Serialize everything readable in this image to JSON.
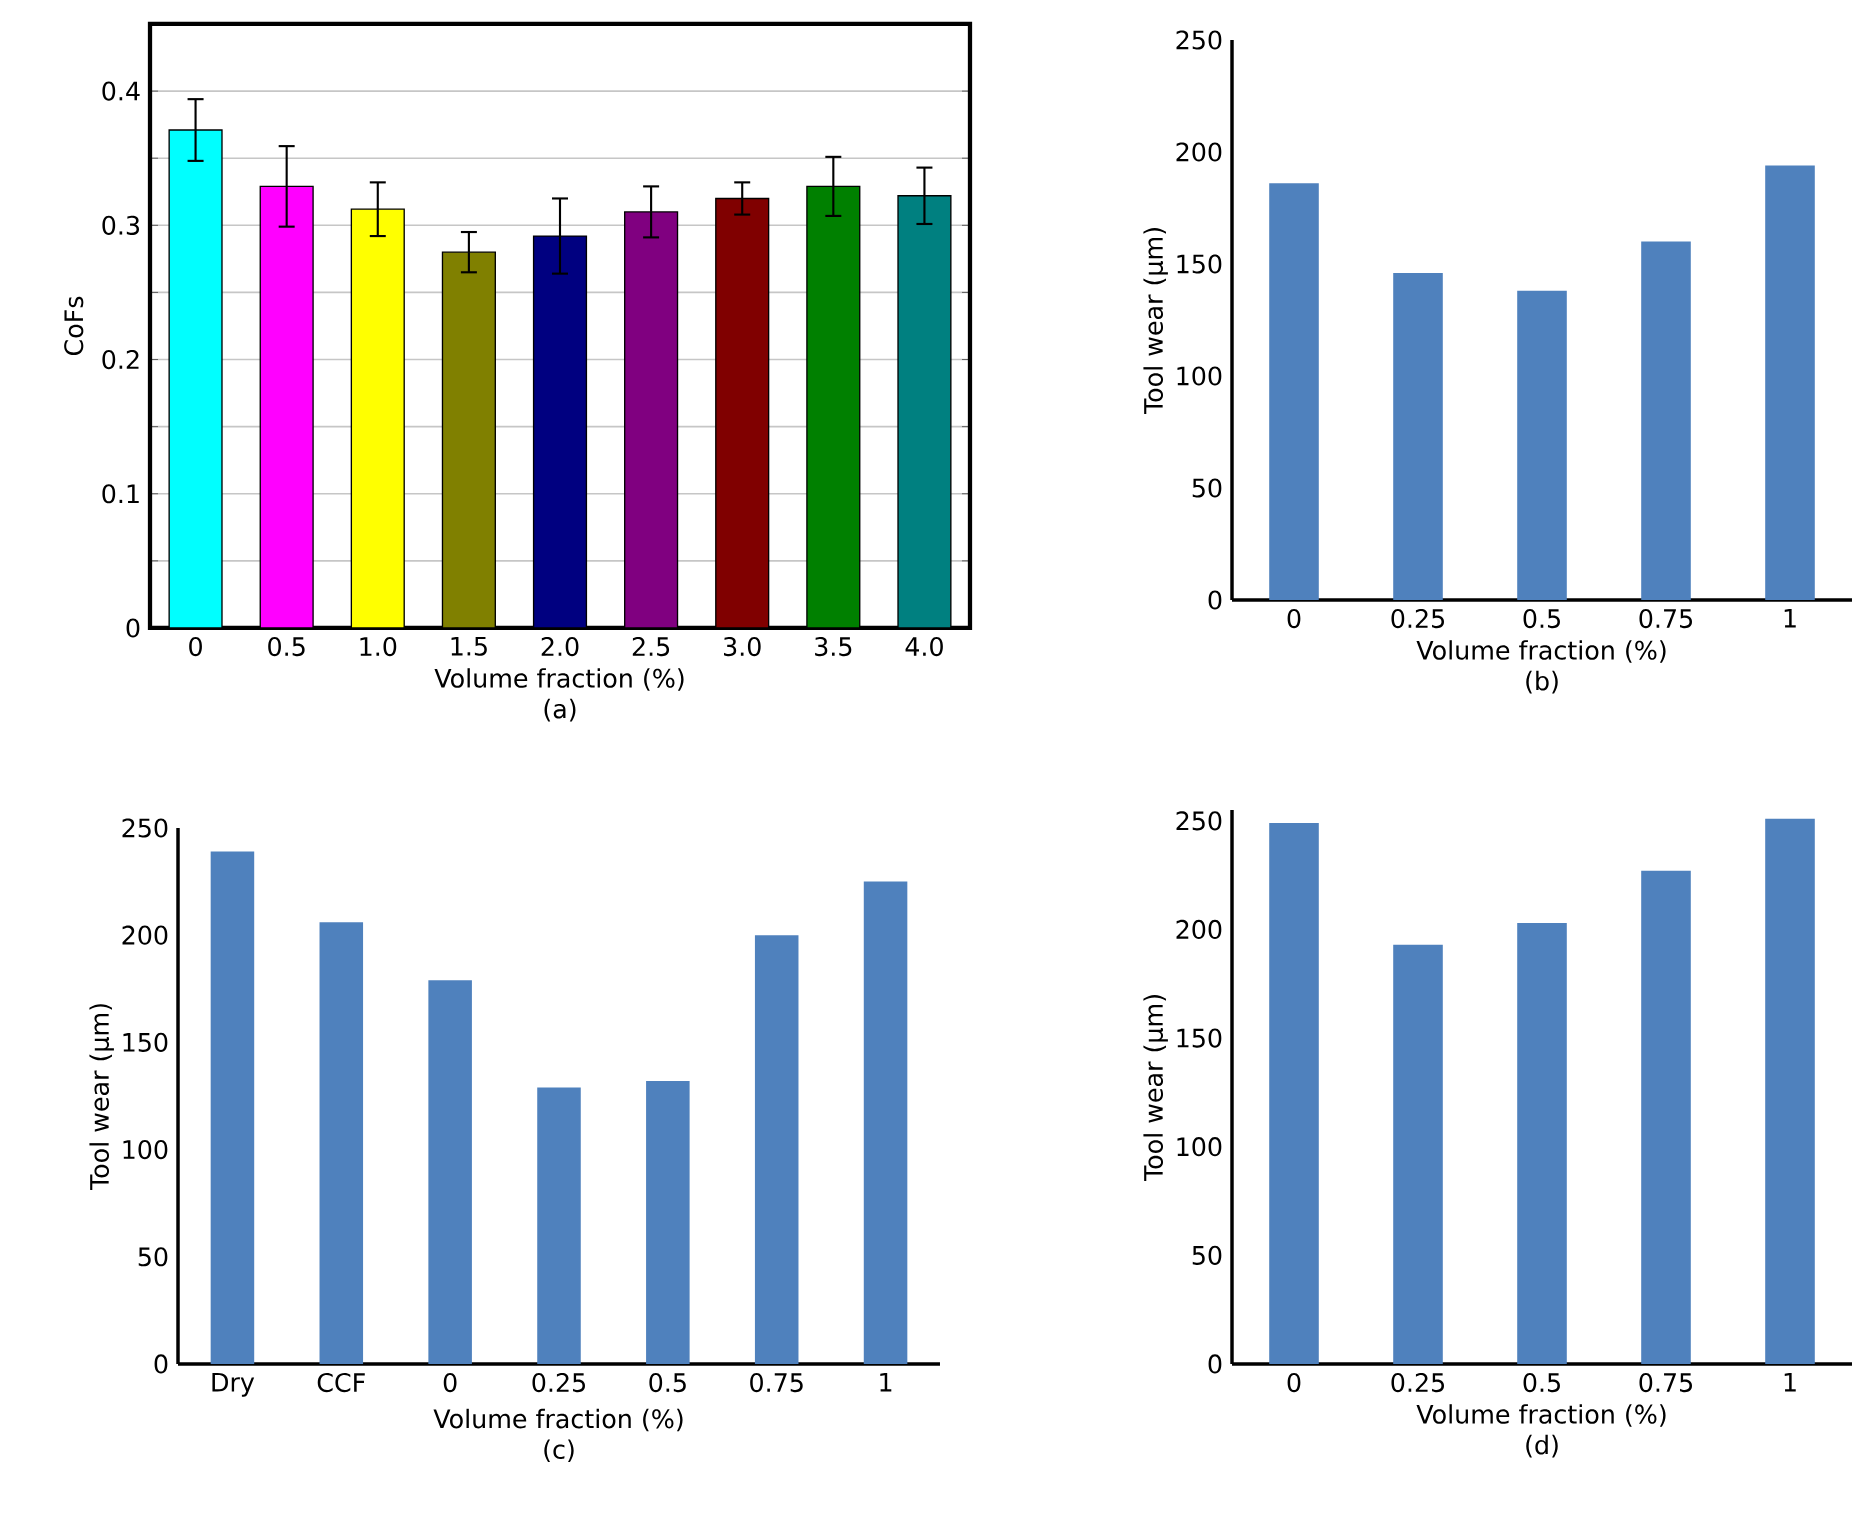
{
  "chart_data": [
    {
      "type": "bar",
      "xlabel": "Volume fraction (%)",
      "ylabel": "CoFs",
      "annotations": [
        "(a)"
      ],
      "categories": [
        "0",
        "0.5",
        "1.0",
        "1.5",
        "2.0",
        "2.5",
        "3.0",
        "3.5",
        "4.0"
      ],
      "values": [
        0.371,
        0.329,
        0.312,
        0.28,
        0.292,
        0.31,
        0.32,
        0.329,
        0.322
      ],
      "errors": [
        0.023,
        0.03,
        0.02,
        0.015,
        0.028,
        0.019,
        0.012,
        0.022,
        0.021
      ],
      "colors": [
        "#00ffff",
        "#ff00ff",
        "#ffff00",
        "#808000",
        "#000080",
        "#800080",
        "#800000",
        "#008000",
        "#008080"
      ],
      "ylim": [
        0,
        0.45
      ],
      "yticks": [
        0,
        {
          "value": 0.05,
          "label": null
        },
        0.1,
        {
          "value": 0.15,
          "label": null
        },
        0.2,
        {
          "value": 0.25,
          "label": null
        },
        0.3,
        {
          "value": 0.35,
          "label": null
        },
        0.4
      ],
      "grid": "y"
    },
    {
      "type": "bar",
      "xlabel": "Volume fraction (%)",
      "ylabel": "Tool wear (μm)",
      "annotations": [
        "(b)"
      ],
      "categories": [
        "0",
        "0.25",
        "0.5",
        "0.75",
        "1"
      ],
      "values": [
        186,
        146,
        138,
        160,
        194
      ],
      "color": "#4f81bd",
      "ylim": [
        0,
        250
      ],
      "yticks": [
        0,
        50,
        100,
        150,
        200,
        250
      ]
    },
    {
      "type": "bar",
      "xlabel": "Volume fraction (%)",
      "ylabel": "Tool wear (μm)",
      "annotations": [
        "(c)"
      ],
      "categories": [
        "Dry",
        "CCF",
        "0",
        "0.25",
        "0.5",
        "0.75",
        "1"
      ],
      "values": [
        239,
        206,
        179,
        129,
        132,
        200,
        225
      ],
      "color": "#4f81bd",
      "ylim": [
        0,
        250
      ],
      "yticks": [
        0,
        50,
        100,
        150,
        200,
        250
      ]
    },
    {
      "type": "bar",
      "xlabel": "Volume fraction (%)",
      "ylabel": "Tool wear (μm)",
      "annotations": [
        "(d)"
      ],
      "categories": [
        "0",
        "0.25",
        "0.5",
        "0.75",
        "1"
      ],
      "values": [
        249,
        193,
        203,
        227,
        251
      ],
      "color": "#4f81bd",
      "ylim": [
        0,
        255
      ],
      "yticks": [
        0,
        50,
        100,
        150,
        200,
        250
      ]
    }
  ]
}
